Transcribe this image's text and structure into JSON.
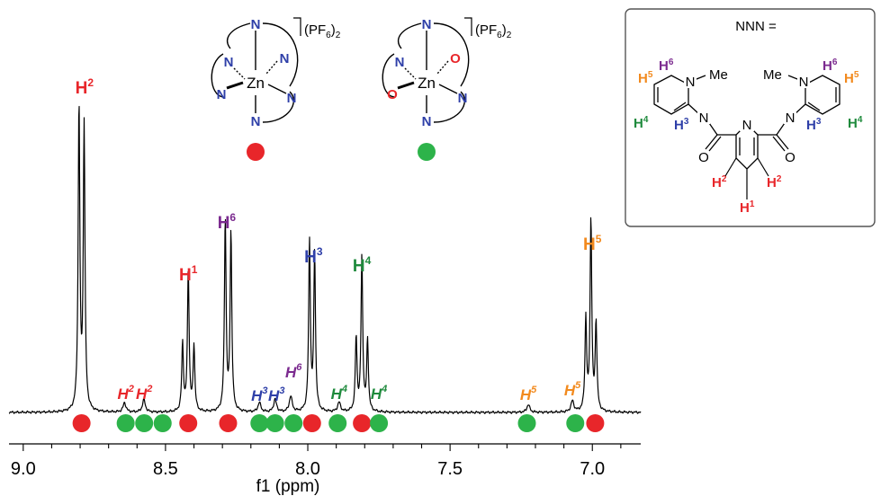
{
  "chart_data": {
    "type": "line",
    "xlabel": "f1 (ppm)",
    "xlim": [
      9.05,
      6.83
    ],
    "x_reversed": true,
    "x_ticks": [
      "9.0",
      "8.5",
      "8.0",
      "7.5",
      "7.0"
    ],
    "x_tick_values": [
      9.0,
      8.5,
      8.0,
      7.5,
      7.0
    ],
    "y_relative_intensity": true,
    "peaks": [
      {
        "ppm": 8.795,
        "height": 0.97,
        "shape": "doublet",
        "split": 0.018
      },
      {
        "ppm": 8.644,
        "height": 0.03,
        "shape": "singlet"
      },
      {
        "ppm": 8.576,
        "height": 0.04,
        "shape": "singlet"
      },
      {
        "ppm": 8.42,
        "height": 0.45,
        "shape": "triplet",
        "split": 0.02
      },
      {
        "ppm": 8.28,
        "height": 0.61,
        "shape": "doublet",
        "split": 0.02
      },
      {
        "ppm": 8.17,
        "height": 0.03,
        "shape": "singlet"
      },
      {
        "ppm": 8.115,
        "height": 0.04,
        "shape": "singlet"
      },
      {
        "ppm": 8.06,
        "height": 0.05,
        "shape": "singlet"
      },
      {
        "ppm": 7.985,
        "height": 0.54,
        "shape": "doublet",
        "split": 0.018
      },
      {
        "ppm": 7.89,
        "height": 0.03,
        "shape": "singlet"
      },
      {
        "ppm": 7.81,
        "height": 0.49,
        "shape": "triplet",
        "split": 0.02
      },
      {
        "ppm": 7.225,
        "height": 0.025,
        "shape": "singlet"
      },
      {
        "ppm": 7.07,
        "height": 0.035,
        "shape": "singlet"
      },
      {
        "ppm": 7.005,
        "height": 0.61,
        "shape": "triplet",
        "split": 0.018
      }
    ],
    "series_markers": [
      {
        "species": "red",
        "color": "#e8262a",
        "ppm": [
          8.795,
          8.42,
          8.28,
          7.985,
          7.81,
          6.99
        ]
      },
      {
        "species": "green",
        "color": "#2db34a",
        "ppm": [
          8.64,
          8.575,
          8.51,
          8.17,
          8.115,
          8.05,
          7.895,
          7.75,
          7.23,
          7.06
        ]
      }
    ],
    "labels": [
      {
        "text": "H",
        "sup": "2",
        "ppm": 8.785,
        "row": 1,
        "color": "#e8262a",
        "italic": false
      },
      {
        "text": "H",
        "sup": "1",
        "ppm": 8.42,
        "row": 3,
        "color": "#e8262a",
        "italic": false
      },
      {
        "text": "H",
        "sup": "6",
        "ppm": 8.285,
        "row": 2,
        "color": "#7b2a8f",
        "italic": false
      },
      {
        "text": "H",
        "sup": "3",
        "ppm": 7.98,
        "row": 4,
        "color": "#2e3fa8",
        "italic": false
      },
      {
        "text": "H",
        "sup": "4",
        "ppm": 7.81,
        "row": 5,
        "color": "#1e8a3c",
        "italic": false
      },
      {
        "text": "H",
        "sup": "5",
        "ppm": 7.0,
        "row": 6,
        "color": "#f28a1e",
        "italic": false
      },
      {
        "text": "H",
        "sup": "2",
        "ppm": 8.64,
        "row": 9,
        "color": "#e8262a",
        "italic": true
      },
      {
        "text": "H",
        "sup": "2",
        "ppm": 8.575,
        "row": 9,
        "color": "#e8262a",
        "italic": true
      },
      {
        "text": "H",
        "sup": "3",
        "ppm": 8.17,
        "row": 10,
        "color": "#2e3fa8",
        "italic": true
      },
      {
        "text": "H",
        "sup": "3",
        "ppm": 8.11,
        "row": 10,
        "color": "#2e3fa8",
        "italic": true
      },
      {
        "text": "H",
        "sup": "6",
        "ppm": 8.05,
        "row": 8,
        "color": "#7b2a8f",
        "italic": true
      },
      {
        "text": "H",
        "sup": "4",
        "ppm": 7.89,
        "row": 9,
        "color": "#1e8a3c",
        "italic": true
      },
      {
        "text": "H",
        "sup": "4",
        "ppm": 7.75,
        "row": 9,
        "color": "#1e8a3c",
        "italic": true
      },
      {
        "text": "H",
        "sup": "5",
        "ppm": 7.225,
        "row": 11,
        "color": "#f28a1e",
        "italic": true
      },
      {
        "text": "H",
        "sup": "5",
        "ppm": 7.07,
        "row": 12,
        "color": "#f28a1e",
        "italic": true
      }
    ]
  },
  "complexes": {
    "anion_text": "(PF",
    "anion_sub": "6",
    "anion_close": ")",
    "anion_charge": "2",
    "metal": "Zn",
    "n_atom": "N",
    "o_atom": "O"
  },
  "ligand_box": {
    "title": "NNN =",
    "methyl": "Me",
    "n_atom": "N",
    "o_atom": "O",
    "h_text": "H"
  },
  "colors": {
    "red": "#e8262a",
    "green": "#2db34a",
    "blue": "#2e3fa8",
    "purple": "#7b2a8f",
    "orange": "#f28a1e",
    "dark_green": "#1e8a3c"
  }
}
